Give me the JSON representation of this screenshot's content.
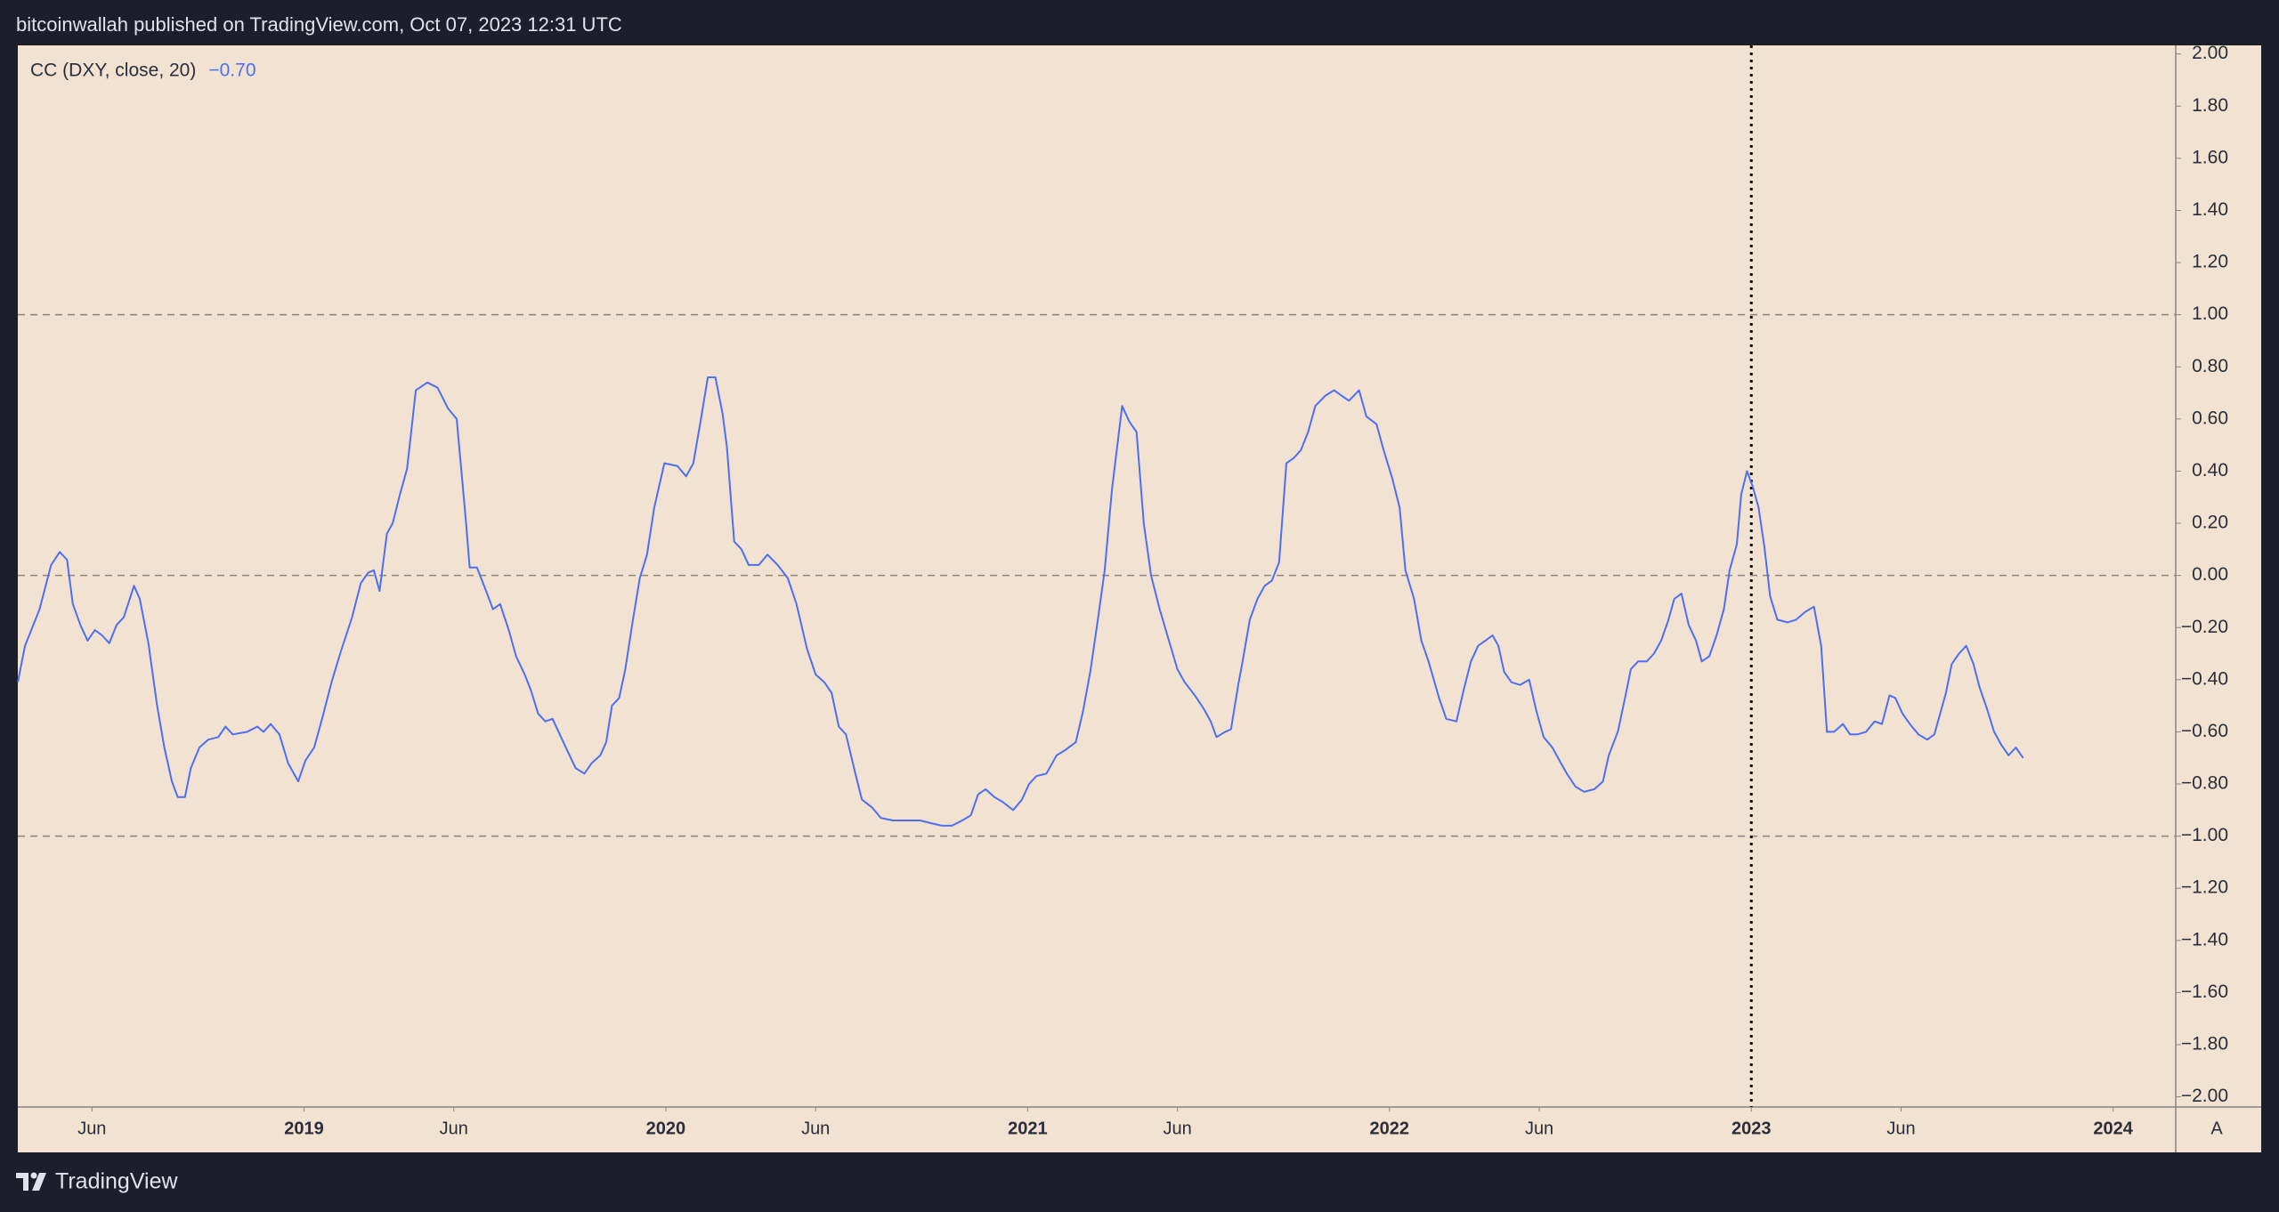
{
  "header": {
    "text": "bitcoinwallah published on TradingView.com, Oct 07, 2023 12:31 UTC"
  },
  "footer": {
    "brand": "TradingView"
  },
  "chart_data": {
    "type": "line",
    "x": [
      2018.209,
      2018.229,
      2018.269,
      2018.301,
      2018.325,
      2018.345,
      2018.361,
      2018.382,
      2018.402,
      2018.422,
      2018.442,
      2018.462,
      2018.482,
      2018.502,
      2018.53,
      2018.546,
      2018.57,
      2018.594,
      2018.614,
      2018.635,
      2018.651,
      2018.671,
      2018.687,
      2018.711,
      2018.735,
      2018.763,
      2018.783,
      2018.803,
      2018.843,
      2018.871,
      2018.888,
      2018.908,
      2018.932,
      2018.956,
      2018.984,
      2019.004,
      2019.028,
      2019.052,
      2019.076,
      2019.1,
      2019.133,
      2019.157,
      2019.177,
      2019.193,
      2019.209,
      2019.229,
      2019.245,
      2019.265,
      2019.285,
      2019.309,
      2019.341,
      2019.369,
      2019.398,
      2019.422,
      2019.446,
      2019.458,
      2019.478,
      2019.506,
      2019.522,
      2019.542,
      2019.566,
      2019.586,
      2019.61,
      2019.627,
      2019.647,
      2019.667,
      2019.687,
      2019.707,
      2019.727,
      2019.751,
      2019.775,
      2019.795,
      2019.819,
      2019.835,
      2019.851,
      2019.871,
      2019.888,
      2019.908,
      2019.928,
      2019.948,
      2019.968,
      2019.996,
      2020.032,
      2020.056,
      2020.076,
      2020.096,
      2020.116,
      2020.137,
      2020.157,
      2020.169,
      2020.189,
      2020.209,
      2020.229,
      2020.257,
      2020.281,
      2020.309,
      2020.337,
      2020.361,
      2020.39,
      2020.414,
      2020.438,
      2020.458,
      2020.478,
      2020.498,
      2020.522,
      2020.542,
      2020.57,
      2020.594,
      2020.627,
      2020.651,
      2020.679,
      2020.703,
      2020.731,
      2020.763,
      2020.791,
      2020.819,
      2020.843,
      2020.863,
      2020.884,
      2020.908,
      2020.932,
      2020.96,
      2020.984,
      2021.004,
      2021.024,
      2021.052,
      2021.08,
      2021.104,
      2021.133,
      2021.153,
      2021.173,
      2021.193,
      2021.213,
      2021.233,
      2021.261,
      2021.281,
      2021.301,
      2021.321,
      2021.341,
      2021.365,
      2021.386,
      2021.414,
      2021.434,
      2021.462,
      2021.486,
      2021.506,
      2021.522,
      2021.546,
      2021.562,
      2021.582,
      2021.594,
      2021.614,
      2021.635,
      2021.655,
      2021.675,
      2021.695,
      2021.715,
      2021.735,
      2021.755,
      2021.775,
      2021.795,
      2021.823,
      2021.847,
      2021.867,
      2021.888,
      2021.916,
      2021.936,
      2021.964,
      2021.984,
      2022.008,
      2022.028,
      2022.044,
      2022.068,
      2022.088,
      2022.108,
      2022.137,
      2022.157,
      2022.185,
      2022.205,
      2022.225,
      2022.245,
      2022.265,
      2022.285,
      2022.301,
      2022.317,
      2022.337,
      2022.361,
      2022.386,
      2022.406,
      2022.426,
      2022.45,
      2022.47,
      2022.49,
      2022.514,
      2022.538,
      2022.566,
      2022.59,
      2022.606,
      2022.631,
      2022.651,
      2022.667,
      2022.687,
      2022.711,
      2022.731,
      2022.751,
      2022.771,
      2022.787,
      2022.807,
      2022.827,
      2022.847,
      2022.863,
      2022.884,
      2022.904,
      2022.924,
      2022.94,
      2022.96,
      2022.972,
      2022.988,
      2023.004,
      2023.02,
      2023.036,
      2023.052,
      2023.072,
      2023.1,
      2023.124,
      2023.149,
      2023.173,
      2023.193,
      2023.209,
      2023.229,
      2023.253,
      2023.273,
      2023.293,
      2023.317,
      2023.341,
      2023.361,
      2023.382,
      2023.398,
      2023.418,
      2023.438,
      2023.462,
      2023.486,
      2023.506,
      2023.522,
      2023.538,
      2023.554,
      2023.574,
      2023.594,
      2023.614,
      2023.631,
      2023.651,
      2023.671,
      2023.691,
      2023.711,
      2023.731,
      2023.751
    ],
    "series": [
      {
        "name": "CC (DXY, close, 20)",
        "color": "#4d6ff0",
        "last_label": "−0.70",
        "values": [
          -0.41,
          -0.27,
          -0.13,
          0.04,
          0.09,
          0.06,
          -0.11,
          -0.19,
          -0.25,
          -0.21,
          -0.23,
          -0.26,
          -0.19,
          -0.16,
          -0.04,
          -0.09,
          -0.26,
          -0.5,
          -0.66,
          -0.79,
          -0.85,
          -0.85,
          -0.74,
          -0.66,
          -0.63,
          -0.62,
          -0.58,
          -0.61,
          -0.6,
          -0.58,
          -0.6,
          -0.57,
          -0.61,
          -0.72,
          -0.79,
          -0.71,
          -0.66,
          -0.54,
          -0.41,
          -0.3,
          -0.16,
          -0.03,
          0.01,
          0.02,
          -0.06,
          0.16,
          0.2,
          0.31,
          0.41,
          0.71,
          0.74,
          0.72,
          0.64,
          0.6,
          0.23,
          0.03,
          0.03,
          -0.07,
          -0.13,
          -0.11,
          -0.21,
          -0.31,
          -0.38,
          -0.44,
          -0.53,
          -0.56,
          -0.55,
          -0.61,
          -0.67,
          -0.74,
          -0.76,
          -0.72,
          -0.69,
          -0.64,
          -0.5,
          -0.47,
          -0.36,
          -0.18,
          -0.01,
          0.08,
          0.26,
          0.43,
          0.42,
          0.38,
          0.43,
          0.59,
          0.76,
          0.76,
          0.62,
          0.49,
          0.13,
          0.1,
          0.04,
          0.04,
          0.08,
          0.04,
          -0.01,
          -0.11,
          -0.28,
          -0.38,
          -0.41,
          -0.45,
          -0.58,
          -0.61,
          -0.75,
          -0.86,
          -0.89,
          -0.93,
          -0.94,
          -0.94,
          -0.94,
          -0.94,
          -0.95,
          -0.96,
          -0.96,
          -0.94,
          -0.92,
          -0.84,
          -0.82,
          -0.85,
          -0.87,
          -0.9,
          -0.86,
          -0.8,
          -0.77,
          -0.76,
          -0.69,
          -0.67,
          -0.64,
          -0.52,
          -0.37,
          -0.18,
          0.02,
          0.33,
          0.65,
          0.59,
          0.55,
          0.2,
          0.0,
          -0.13,
          -0.23,
          -0.36,
          -0.41,
          -0.46,
          -0.51,
          -0.56,
          -0.62,
          -0.6,
          -0.59,
          -0.42,
          -0.33,
          -0.17,
          -0.09,
          -0.04,
          -0.02,
          0.05,
          0.43,
          0.45,
          0.48,
          0.55,
          0.65,
          0.69,
          0.71,
          0.69,
          0.67,
          0.71,
          0.61,
          0.58,
          0.48,
          0.37,
          0.26,
          0.02,
          -0.09,
          -0.25,
          -0.33,
          -0.47,
          -0.55,
          -0.56,
          -0.44,
          -0.33,
          -0.27,
          -0.25,
          -0.23,
          -0.27,
          -0.37,
          -0.41,
          -0.42,
          -0.4,
          -0.52,
          -0.62,
          -0.66,
          -0.71,
          -0.76,
          -0.81,
          -0.83,
          -0.82,
          -0.79,
          -0.69,
          -0.6,
          -0.47,
          -0.36,
          -0.33,
          -0.33,
          -0.3,
          -0.25,
          -0.17,
          -0.09,
          -0.07,
          -0.19,
          -0.25,
          -0.33,
          -0.31,
          -0.23,
          -0.13,
          0.02,
          0.12,
          0.31,
          0.4,
          0.34,
          0.26,
          0.11,
          -0.08,
          -0.17,
          -0.18,
          -0.17,
          -0.14,
          -0.12,
          -0.27,
          -0.6,
          -0.6,
          -0.57,
          -0.61,
          -0.61,
          -0.6,
          -0.56,
          -0.57,
          -0.46,
          -0.47,
          -0.53,
          -0.57,
          -0.61,
          -0.63,
          -0.61,
          -0.53,
          -0.45,
          -0.34,
          -0.3,
          -0.27,
          -0.34,
          -0.43,
          -0.51,
          -0.6,
          -0.65,
          -0.69,
          -0.66,
          -0.7
        ]
      }
    ],
    "xlim": [
      2018.209,
      2024.173
    ],
    "xticks": [
      {
        "value": 2018.414,
        "label": "Jun"
      },
      {
        "value": 2019,
        "label": "2019"
      },
      {
        "value": 2019.414,
        "label": "Jun"
      },
      {
        "value": 2020,
        "label": "2020"
      },
      {
        "value": 2020.414,
        "label": "Jun"
      },
      {
        "value": 2021,
        "label": "2021"
      },
      {
        "value": 2021.414,
        "label": "Jun"
      },
      {
        "value": 2022,
        "label": "2022"
      },
      {
        "value": 2022.414,
        "label": "Jun"
      },
      {
        "value": 2023,
        "label": "2023"
      },
      {
        "value": 2023.414,
        "label": "Jun"
      },
      {
        "value": 2024,
        "label": "2024"
      }
    ],
    "ylim": [
      -2.039,
      2.033
    ],
    "yticks": [
      {
        "value": 2,
        "label": "2.00"
      },
      {
        "value": 1.8,
        "label": "1.80"
      },
      {
        "value": 1.6,
        "label": "1.60"
      },
      {
        "value": 1.4,
        "label": "1.40"
      },
      {
        "value": 1.2,
        "label": "1.20"
      },
      {
        "value": 1,
        "label": "1.00"
      },
      {
        "value": 0.8,
        "label": "0.80"
      },
      {
        "value": 0.6,
        "label": "0.60"
      },
      {
        "value": 0.4,
        "label": "0.40"
      },
      {
        "value": 0.2,
        "label": "0.20"
      },
      {
        "value": 0,
        "label": "0.00"
      },
      {
        "value": -0.2,
        "label": "−0.20"
      },
      {
        "value": -0.4,
        "label": "−0.40"
      },
      {
        "value": -0.6,
        "label": "−0.60"
      },
      {
        "value": -0.8,
        "label": "−0.80"
      },
      {
        "value": -1,
        "label": "−1.00"
      },
      {
        "value": -1.2,
        "label": "−1.20"
      },
      {
        "value": -1.4,
        "label": "−1.40"
      },
      {
        "value": -1.6,
        "label": "−1.60"
      },
      {
        "value": -1.8,
        "label": "−1.80"
      },
      {
        "value": -2,
        "label": "−2.00"
      }
    ],
    "hlines": [
      1,
      0,
      -1
    ],
    "vline": 2023,
    "scale_mode": "A"
  }
}
